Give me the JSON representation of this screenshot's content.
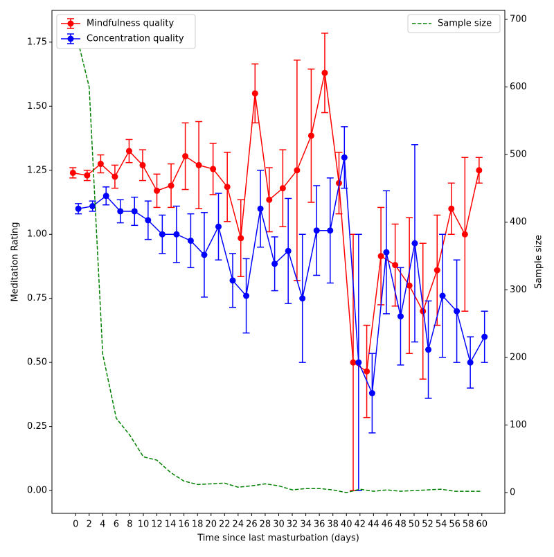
{
  "chart_data": {
    "type": "errorbar",
    "xlabel": "Time since last masturbation (days)",
    "ylabel": "Meditation Rating",
    "y2label": "Sample size",
    "xlim": [
      -3.5,
      63.4
    ],
    "xticks": [
      0,
      2,
      4,
      6,
      8,
      10,
      12,
      14,
      16,
      18,
      20,
      22,
      24,
      26,
      28,
      30,
      32,
      34,
      36,
      38,
      40,
      42,
      44,
      46,
      48,
      50,
      52,
      54,
      56,
      58,
      60
    ],
    "ylim": [
      -0.089,
      1.874
    ],
    "yticks": [
      {
        "value": 0,
        "label": "0.00"
      },
      {
        "value": 0.25,
        "label": "0.25"
      },
      {
        "value": 0.5,
        "label": "0.50"
      },
      {
        "value": 0.75,
        "label": "0.75"
      },
      {
        "value": 1,
        "label": "1.00"
      },
      {
        "value": 1.25,
        "label": "1.25"
      },
      {
        "value": 1.5,
        "label": "1.50"
      },
      {
        "value": 1.75,
        "label": "1.75"
      }
    ],
    "y2lim": [
      -30.7,
      713.3
    ],
    "y2ticks": [
      0,
      100,
      200,
      300,
      400,
      500,
      600,
      700
    ],
    "legend": "upper left",
    "legend2": "upper right",
    "series": [
      {
        "name": "Mindfulness quality",
        "color": "#ff0000",
        "x": [
          -0.4,
          1.7,
          3.7,
          5.8,
          7.9,
          9.9,
          12.0,
          14.1,
          16.2,
          18.2,
          20.3,
          22.4,
          24.4,
          26.5,
          28.6,
          30.6,
          32.7,
          34.8,
          36.8,
          38.9,
          41.0,
          43.0,
          45.1,
          47.2,
          49.3,
          51.3,
          53.4,
          55.5,
          57.5,
          59.6
        ],
        "values": [
          1.24,
          1.23,
          1.275,
          1.225,
          1.325,
          1.27,
          1.17,
          1.19,
          1.305,
          1.27,
          1.255,
          1.185,
          0.985,
          1.55,
          1.135,
          1.18,
          1.25,
          1.385,
          1.63,
          1.2,
          0.5,
          0.465,
          0.915,
          0.88,
          0.8,
          0.7,
          0.86,
          1.1,
          1.0,
          1.25
        ],
        "errors": [
          0.02,
          0.02,
          0.035,
          0.045,
          0.045,
          0.06,
          0.065,
          0.085,
          0.13,
          0.17,
          0.1,
          0.135,
          0.15,
          0.115,
          0.125,
          0.15,
          0.43,
          0.26,
          0.155,
          0.12,
          0.5,
          0.18,
          0.19,
          0.16,
          0.265,
          0.265,
          0.215,
          0.1,
          0.3,
          0.05
        ]
      },
      {
        "name": "Concentration quality",
        "color": "#0000ff",
        "x": [
          0.4,
          2.5,
          4.5,
          6.6,
          8.7,
          10.7,
          12.8,
          14.9,
          17.0,
          19.0,
          21.1,
          23.2,
          25.2,
          27.3,
          29.4,
          31.4,
          33.5,
          35.6,
          37.6,
          39.7,
          41.8,
          43.8,
          45.9,
          48.0,
          50.1,
          52.1,
          54.2,
          56.3,
          58.3,
          60.4
        ],
        "values": [
          1.1,
          1.11,
          1.15,
          1.09,
          1.09,
          1.055,
          1.0,
          1.0,
          0.975,
          0.92,
          1.03,
          0.82,
          0.76,
          1.1,
          0.885,
          0.935,
          0.75,
          1.015,
          1.015,
          1.3,
          0.5,
          0.38,
          0.93,
          0.68,
          0.965,
          0.55,
          0.76,
          0.7,
          0.5,
          0.6
        ],
        "errors": [
          0.02,
          0.02,
          0.035,
          0.045,
          0.055,
          0.075,
          0.075,
          0.11,
          0.105,
          0.165,
          0.13,
          0.105,
          0.145,
          0.15,
          0.105,
          0.205,
          0.25,
          0.175,
          0.205,
          0.12,
          0.5,
          0.155,
          0.24,
          0.19,
          0.385,
          0.19,
          0.24,
          0.2,
          0.1,
          0.1
        ]
      },
      {
        "name": "Sample size",
        "color": "#008000",
        "axis": "y2",
        "linestyle": "dashed",
        "x": [
          0,
          2,
          4,
          6,
          8,
          10,
          12,
          14,
          16,
          18,
          20,
          22,
          24,
          26,
          28,
          30,
          32,
          34,
          36,
          38,
          40,
          42,
          44,
          46,
          48,
          50,
          52,
          54,
          56,
          58,
          60
        ],
        "values": [
          682,
          600,
          205,
          110,
          85,
          53,
          48,
          30,
          17,
          12,
          13,
          14,
          8,
          10,
          13,
          10,
          4,
          6,
          6,
          4,
          0,
          5,
          2,
          4,
          2,
          3,
          4,
          5,
          2,
          2,
          2
        ]
      }
    ]
  }
}
